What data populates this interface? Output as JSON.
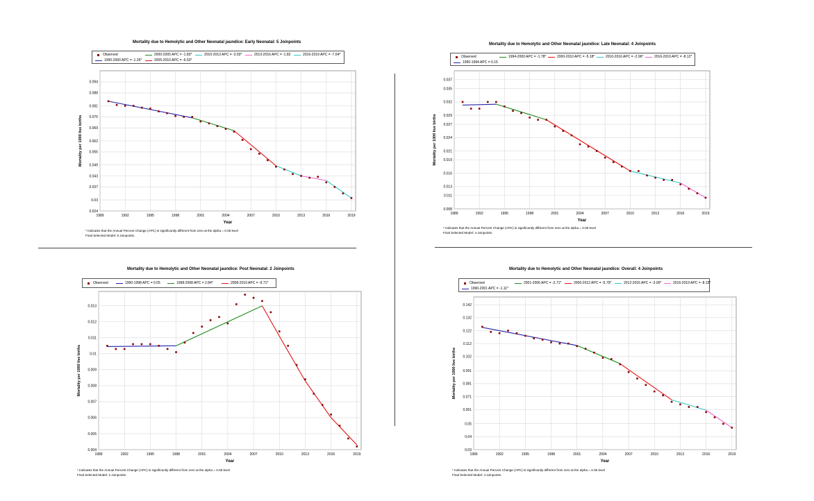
{
  "footnote": {
    "apc": "* Indicates that the Annual Percent Change (APC) is significantly different from zero at the alpha = 0.05 level"
  },
  "chart_data": [
    {
      "type": "line",
      "title": "Mortality due to Hemolytic and Other Neonatal jaundice: Early Neonatal: 5 Joinpoints",
      "xlabel": "Year",
      "ylabel": "Mortality per 1000 live births",
      "xlim": [
        1989,
        2019.5
      ],
      "ylim": [
        0.024,
        0.1
      ],
      "xticks": [
        1989,
        1992,
        1995,
        1998,
        2001,
        2004,
        2007,
        2010,
        2013,
        2016,
        2019
      ],
      "yticks": [
        "0.024",
        "0.03",
        "0.037",
        "0.043",
        "0.049",
        "0.056",
        "0.062",
        "0.069",
        "0.075",
        "0.081",
        "0.088",
        "0.094"
      ],
      "grid": true,
      "legend_position": "top",
      "final_model": "Final Selected Model: 5 Joinpoints.",
      "observed_label": "Observed",
      "observed": {
        "x": [
          1990,
          1991,
          1992,
          1993,
          1994,
          1995,
          1996,
          1997,
          1998,
          1999,
          2000,
          2001,
          2002,
          2003,
          2004,
          2005,
          2006,
          2007,
          2008,
          2009,
          2010,
          2011,
          2012,
          2013,
          2014,
          2015,
          2016,
          2017,
          2018,
          2019
        ],
        "y": [
          0.0835,
          0.0815,
          0.081,
          0.081,
          0.08,
          0.0795,
          0.078,
          0.077,
          0.0755,
          0.075,
          0.075,
          0.0725,
          0.0715,
          0.07,
          0.0685,
          0.067,
          0.0625,
          0.0575,
          0.055,
          0.0515,
          0.048,
          0.0465,
          0.044,
          0.043,
          0.042,
          0.0425,
          0.0395,
          0.037,
          0.0335,
          0.031
        ]
      },
      "series": [
        {
          "name": "1990-2000 APC = -1.26*",
          "color": "#2222aa",
          "x": [
            1990,
            2000
          ],
          "y": [
            0.0835,
            0.0745
          ]
        },
        {
          "name": "2000-2005 APC = -1.83*",
          "color": "#1a8a1a",
          "x": [
            2000,
            2005
          ],
          "y": [
            0.0745,
            0.0675
          ]
        },
        {
          "name": "2005-2010 APC = -6.53*",
          "color": "#e01010",
          "x": [
            2005,
            2010
          ],
          "y": [
            0.0675,
            0.0485
          ]
        },
        {
          "name": "2010-2013 APC = -3.93*",
          "color": "#30c8c8",
          "x": [
            2010,
            2013
          ],
          "y": [
            0.0485,
            0.043
          ]
        },
        {
          "name": "2013-2016 APC = -1.82",
          "color": "#ee66cc",
          "x": [
            2013,
            2016
          ],
          "y": [
            0.043,
            0.0405
          ]
        },
        {
          "name": "2016-2019 APC = -7.64*",
          "color": "#30c8c8",
          "x": [
            2016,
            2019
          ],
          "y": [
            0.0405,
            0.031
          ]
        }
      ]
    },
    {
      "type": "line",
      "title": "Mortality due to Hemolytic and Other Neonatal jaundice: Late Neonatal: 4 Joinpoints",
      "xlabel": "Year",
      "ylabel": "Mortality per 1000 live births",
      "xlim": [
        1989,
        2019.5
      ],
      "ylim": [
        0.008,
        0.039
      ],
      "xticks": [
        1989,
        1992,
        1995,
        1998,
        2001,
        2004,
        2007,
        2010,
        2013,
        2016,
        2019
      ],
      "yticks": [
        "0.008",
        "0.011",
        "0.013",
        "0.016",
        "0.019",
        "0.021",
        "0.024",
        "0.027",
        "0.029",
        "0.032",
        "0.035",
        "0.037"
      ],
      "grid": true,
      "legend_position": "top",
      "final_model": "Final Selected Model: 4 Joinpoints.",
      "observed_label": "Observed",
      "observed": {
        "x": [
          1990,
          1991,
          1992,
          1993,
          1994,
          1995,
          1996,
          1997,
          1998,
          1999,
          2000,
          2001,
          2002,
          2003,
          2004,
          2005,
          2006,
          2007,
          2008,
          2009,
          2010,
          2011,
          2012,
          2013,
          2014,
          2015,
          2016,
          2017,
          2018,
          2019
        ],
        "y": [
          0.032,
          0.0305,
          0.0305,
          0.032,
          0.032,
          0.031,
          0.03,
          0.0295,
          0.0285,
          0.028,
          0.028,
          0.0265,
          0.0255,
          0.0245,
          0.0225,
          0.022,
          0.021,
          0.0195,
          0.0185,
          0.0175,
          0.0165,
          0.0165,
          0.0155,
          0.015,
          0.0145,
          0.0145,
          0.0135,
          0.0125,
          0.0115,
          0.0105
        ]
      },
      "series": [
        {
          "name": "1990-1994 APC = 0.15",
          "color": "#2222aa",
          "x": [
            1990,
            1994
          ],
          "y": [
            0.0313,
            0.0315
          ]
        },
        {
          "name": "1994-2000 APC = -1.78*",
          "color": "#1a8a1a",
          "x": [
            1994,
            2000
          ],
          "y": [
            0.0315,
            0.028
          ]
        },
        {
          "name": "2000-2010 APC = -5.18*",
          "color": "#e01010",
          "x": [
            2000,
            2010
          ],
          "y": [
            0.028,
            0.0165
          ]
        },
        {
          "name": "2010-2016 APC = -2.96*",
          "color": "#30c8c8",
          "x": [
            2010,
            2016
          ],
          "y": [
            0.0165,
            0.0138
          ]
        },
        {
          "name": "2016-2019 APC = -8.12*",
          "color": "#ee66cc",
          "x": [
            2016,
            2019
          ],
          "y": [
            0.0138,
            0.0105
          ]
        }
      ]
    },
    {
      "type": "line",
      "title": "Mortality due to Hemolytic and Other Neonatal jaundice: Post Neonatal: 2 Joinpoints",
      "xlabel": "Year",
      "ylabel": "Mortality per 1000 live births",
      "xlim": [
        1989,
        2019.5
      ],
      "ylim": [
        0.004,
        0.0139
      ],
      "xticks": [
        1989,
        1992,
        1995,
        1998,
        2001,
        2004,
        2007,
        2010,
        2013,
        2016,
        2019
      ],
      "yticks": [
        "0.004",
        "0.005",
        "0.006",
        "0.007",
        "0.008",
        "0.009",
        "0.01",
        "0.011",
        "0.012",
        "0.013"
      ],
      "grid": true,
      "legend_position": "top",
      "final_model": "Final Selected Model: 2 Joinpoints.",
      "observed_label": "Observed",
      "observed": {
        "x": [
          1990,
          1991,
          1992,
          1993,
          1994,
          1995,
          1996,
          1997,
          1998,
          1999,
          2000,
          2001,
          2002,
          2003,
          2004,
          2005,
          2006,
          2007,
          2008,
          2009,
          2010,
          2011,
          2012,
          2013,
          2014,
          2015,
          2016,
          2017,
          2018,
          2019
        ],
        "y": [
          0.0105,
          0.0103,
          0.0103,
          0.0106,
          0.0106,
          0.0106,
          0.0105,
          0.0103,
          0.0101,
          0.0107,
          0.0113,
          0.0117,
          0.0121,
          0.0123,
          0.0119,
          0.0131,
          0.0137,
          0.0135,
          0.0133,
          0.0126,
          0.0114,
          0.0105,
          0.0093,
          0.0084,
          0.0075,
          0.0068,
          0.0062,
          0.0055,
          0.0047,
          0.0042
        ]
      },
      "series": [
        {
          "name": "1990-1998 APC = 0.05",
          "color": "#2222aa",
          "x": [
            1990,
            1998
          ],
          "y": [
            0.01045,
            0.0105
          ]
        },
        {
          "name": "1998-2008 APC = 2.84*",
          "color": "#1a8a1a",
          "x": [
            1998,
            2008
          ],
          "y": [
            0.0105,
            0.013
          ]
        },
        {
          "name": "2008-2019 APC = -9.71*",
          "color": "#e01010",
          "x": [
            2008,
            2010,
            2013,
            2016,
            2019
          ],
          "y": [
            0.013,
            0.0111,
            0.0083,
            0.006,
            0.0043
          ]
        }
      ]
    },
    {
      "type": "line",
      "title": "Mortality due to Hemolytic and Other Neonatal jaundice: Overall: 4 Joinpoints",
      "xlabel": "Year",
      "ylabel": "Mortality per 1000 live births",
      "xlim": [
        1989,
        2019.5
      ],
      "ylim": [
        0.03,
        0.148
      ],
      "xticks": [
        1989,
        1992,
        1995,
        1998,
        2001,
        2004,
        2007,
        2010,
        2013,
        2016,
        2019
      ],
      "yticks": [
        "0.03",
        "0.04",
        "0.05",
        "0.061",
        "0.071",
        "0.081",
        "0.091",
        "0.102",
        "0.112",
        "0.122",
        "0.132",
        "0.142"
      ],
      "grid": true,
      "legend_position": "top",
      "final_model": "Final Selected Model: 4 Joinpoints.",
      "observed_label": "Observed",
      "observed": {
        "x": [
          1990,
          1991,
          1992,
          1993,
          1994,
          1995,
          1996,
          1997,
          1998,
          1999,
          2000,
          2001,
          2002,
          2003,
          2004,
          2005,
          2006,
          2007,
          2008,
          2009,
          2010,
          2011,
          2012,
          2013,
          2014,
          2015,
          2016,
          2017,
          2018,
          2019
        ],
        "y": [
          0.125,
          0.121,
          0.12,
          0.122,
          0.12,
          0.118,
          0.116,
          0.115,
          0.113,
          0.112,
          0.112,
          0.11,
          0.108,
          0.105,
          0.101,
          0.1,
          0.096,
          0.09,
          0.085,
          0.08,
          0.075,
          0.072,
          0.067,
          0.065,
          0.063,
          0.063,
          0.059,
          0.055,
          0.05,
          0.047
        ]
      },
      "series": [
        {
          "name": "1990-2001 APC = -1.11*",
          "color": "#2222aa",
          "x": [
            1990,
            2001
          ],
          "y": [
            0.1245,
            0.1105
          ]
        },
        {
          "name": "2001-2006 APC = -2.71*",
          "color": "#1a8a1a",
          "x": [
            2001,
            2006
          ],
          "y": [
            0.1105,
            0.0965
          ]
        },
        {
          "name": "2006-2012 APC = -5.79*",
          "color": "#e01010",
          "x": [
            2006,
            2012
          ],
          "y": [
            0.0965,
            0.0685
          ]
        },
        {
          "name": "2012-2016 APC = -3.00*",
          "color": "#30c8c8",
          "x": [
            2012,
            2016
          ],
          "y": [
            0.0685,
            0.0605
          ]
        },
        {
          "name": "2016-2019 APC = -8.15*",
          "color": "#ee66cc",
          "x": [
            2016,
            2019
          ],
          "y": [
            0.0605,
            0.047
          ]
        }
      ]
    }
  ]
}
